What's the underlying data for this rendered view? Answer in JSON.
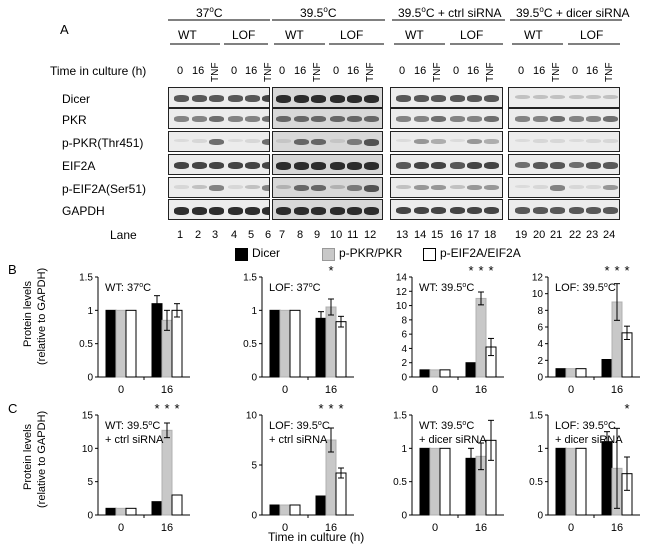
{
  "panel_a": {
    "letter": "A",
    "conditions": [
      {
        "label_main": "37",
        "label_sup": "o",
        "label_end": "C"
      },
      {
        "label_main": "39.5",
        "label_sup": "o",
        "label_end": "C"
      },
      {
        "label_main": "39.5",
        "label_sup": "o",
        "label_end": "C + ctrl siRNA"
      },
      {
        "label_main": "39.5",
        "label_sup": "o",
        "label_end": "C + dicer siRNA"
      }
    ],
    "genotypes": [
      "WT",
      "LOF"
    ],
    "time_label": "Time in culture (h)",
    "time_points": [
      "0",
      "16",
      "TNF"
    ],
    "rows": [
      "Dicer",
      "PKR",
      "p-PKR(Thr451)",
      "EIF2A",
      "p-EIF2A(Ser51)",
      "GAPDH"
    ],
    "lane_label": "Lane",
    "lanes": [
      "1",
      "2",
      "3",
      "4",
      "5",
      "6",
      "7",
      "8",
      "9",
      "10",
      "11",
      "12",
      "13",
      "14",
      "15",
      "16",
      "17",
      "18",
      "19",
      "20",
      "21",
      "22",
      "23",
      "24"
    ]
  },
  "panel_b": {
    "letter": "B",
    "y_label_line1": "Protein levels",
    "y_label_line2": "(relative to GAPDH)"
  },
  "panel_c": {
    "letter": "C",
    "y_label_line1": "Protein levels",
    "y_label_line2": "(relative to GAPDH)"
  },
  "legend": [
    "Dicer",
    "p-PKR/PKR",
    "p-EIF2A/EIF2A"
  ],
  "x_axis_label": "Time in culture (h)",
  "colors": {
    "dicer": "#000000",
    "ppkr": "#c8c8c8",
    "peif2a": "#ffffff"
  },
  "chart_data": [
    {
      "type": "bar",
      "title_main": "WT: 37",
      "title_sup": "o",
      "title_end": "C",
      "title2": "",
      "categories": [
        "0",
        "16"
      ],
      "series": [
        {
          "name": "Dicer",
          "values": [
            1.0,
            1.1
          ]
        },
        {
          "name": "p-PKR/PKR",
          "values": [
            1.0,
            0.85
          ]
        },
        {
          "name": "p-EIF2A/EIF2A",
          "values": [
            1.0,
            1.0
          ]
        }
      ],
      "errors": [
        [
          0.02,
          0.12
        ],
        [
          0.02,
          0.15
        ],
        [
          0.02,
          0.1
        ]
      ],
      "ylim": [
        0,
        1.5
      ],
      "yticks": [
        "0",
        "0.5",
        "1",
        "1.5"
      ],
      "stars": []
    },
    {
      "type": "bar",
      "title_main": "LOF: 37",
      "title_sup": "o",
      "title_end": "C",
      "title2": "",
      "categories": [
        "0",
        "16"
      ],
      "series": [
        {
          "name": "Dicer",
          "values": [
            1.0,
            0.88
          ]
        },
        {
          "name": "p-PKR/PKR",
          "values": [
            1.0,
            1.05
          ]
        },
        {
          "name": "p-EIF2A/EIF2A",
          "values": [
            1.0,
            0.83
          ]
        }
      ],
      "errors": [
        [
          0.01,
          0.1
        ],
        [
          0.01,
          0.12
        ],
        [
          0.01,
          0.08
        ]
      ],
      "ylim": [
        0,
        1.5
      ],
      "yticks": [
        "0",
        "0.5",
        "1",
        "1.5"
      ],
      "stars": [
        1
      ]
    },
    {
      "type": "bar",
      "title_main": "WT: 39.5",
      "title_sup": "o",
      "title_end": "C",
      "title2": "",
      "categories": [
        "0",
        "16"
      ],
      "series": [
        {
          "name": "Dicer",
          "values": [
            1.0,
            2.0
          ]
        },
        {
          "name": "p-PKR/PKR",
          "values": [
            1.0,
            11.0
          ]
        },
        {
          "name": "p-EIF2A/EIF2A",
          "values": [
            1.0,
            4.2
          ]
        }
      ],
      "errors": [
        [
          0.1,
          0.2
        ],
        [
          0.1,
          0.9
        ],
        [
          0.1,
          1.2
        ]
      ],
      "ylim": [
        0,
        14
      ],
      "yticks": [
        "0",
        "2",
        "4",
        "6",
        "8",
        "10",
        "12",
        "14"
      ],
      "stars": [
        0,
        1,
        2
      ]
    },
    {
      "type": "bar",
      "title_main": "LOF: 39.5",
      "title_sup": "o",
      "title_end": "C",
      "title2": "",
      "categories": [
        "0",
        "16"
      ],
      "series": [
        {
          "name": "Dicer",
          "values": [
            1.0,
            2.1
          ]
        },
        {
          "name": "p-PKR/PKR",
          "values": [
            1.0,
            9.0
          ]
        },
        {
          "name": "p-EIF2A/EIF2A",
          "values": [
            1.0,
            5.3
          ]
        }
      ],
      "errors": [
        [
          0.1,
          0.2
        ],
        [
          0.1,
          2.2
        ],
        [
          0.1,
          0.8
        ]
      ],
      "ylim": [
        0,
        12
      ],
      "yticks": [
        "0",
        "2",
        "4",
        "6",
        "8",
        "10",
        "12"
      ],
      "stars": [
        0,
        1,
        2
      ]
    },
    {
      "type": "bar",
      "title_main": "WT: 39.5",
      "title_sup": "o",
      "title_end": "C",
      "title2": "+ ctrl siRNA",
      "categories": [
        "0",
        "16"
      ],
      "series": [
        {
          "name": "Dicer",
          "values": [
            1.0,
            2.0
          ]
        },
        {
          "name": "p-PKR/PKR",
          "values": [
            1.0,
            12.7
          ]
        },
        {
          "name": "p-EIF2A/EIF2A",
          "values": [
            1.0,
            3.0
          ]
        }
      ],
      "errors": [
        [
          0.1,
          0.2
        ],
        [
          0.1,
          1.1
        ],
        [
          0.1,
          0.3
        ]
      ],
      "ylim": [
        0,
        15
      ],
      "yticks": [
        "0",
        "5",
        "10",
        "15"
      ],
      "stars": [
        0,
        1,
        2
      ]
    },
    {
      "type": "bar",
      "title_main": "LOF: 39.5",
      "title_sup": "o",
      "title_end": "C",
      "title2": "+ ctrl siRNA",
      "categories": [
        "0",
        "16"
      ],
      "series": [
        {
          "name": "Dicer",
          "values": [
            1.0,
            1.9
          ]
        },
        {
          "name": "p-PKR/PKR",
          "values": [
            1.0,
            7.5
          ]
        },
        {
          "name": "p-EIF2A/EIF2A",
          "values": [
            1.0,
            4.2
          ]
        }
      ],
      "errors": [
        [
          0.05,
          0.3
        ],
        [
          0.05,
          1.2
        ],
        [
          0.05,
          0.5
        ]
      ],
      "ylim": [
        0,
        10
      ],
      "yticks": [
        "0",
        "5",
        "10"
      ],
      "stars": [
        0,
        1,
        2
      ]
    },
    {
      "type": "bar",
      "title_main": "WT: 39.5",
      "title_sup": "o",
      "title_end": "C",
      "title2": "+ dicer siRNA",
      "categories": [
        "0",
        "16"
      ],
      "series": [
        {
          "name": "Dicer",
          "values": [
            1.0,
            0.85
          ]
        },
        {
          "name": "p-PKR/PKR",
          "values": [
            1.0,
            0.88
          ]
        },
        {
          "name": "p-EIF2A/EIF2A",
          "values": [
            1.0,
            1.12
          ]
        }
      ],
      "errors": [
        [
          0.01,
          0.15
        ],
        [
          0.01,
          0.2
        ],
        [
          0.01,
          0.3
        ]
      ],
      "ylim": [
        0,
        1.5
      ],
      "yticks": [
        "0",
        "0.5",
        "1",
        "1.5"
      ],
      "stars": []
    },
    {
      "type": "bar",
      "title_main": "LOF: 39.5",
      "title_sup": "o",
      "title_end": "C",
      "title2": "+ dicer siRNA",
      "categories": [
        "0",
        "16"
      ],
      "series": [
        {
          "name": "Dicer",
          "values": [
            1.0,
            1.1
          ]
        },
        {
          "name": "p-PKR/PKR",
          "values": [
            1.0,
            0.7
          ]
        },
        {
          "name": "p-EIF2A/EIF2A",
          "values": [
            1.0,
            0.62
          ]
        }
      ],
      "errors": [
        [
          0.01,
          0.15
        ],
        [
          0.01,
          0.6
        ],
        [
          0.01,
          0.25
        ]
      ],
      "ylim": [
        0,
        1.5
      ],
      "yticks": [
        "0",
        "0.5",
        "1",
        "1.5"
      ],
      "stars": [
        2
      ]
    }
  ]
}
